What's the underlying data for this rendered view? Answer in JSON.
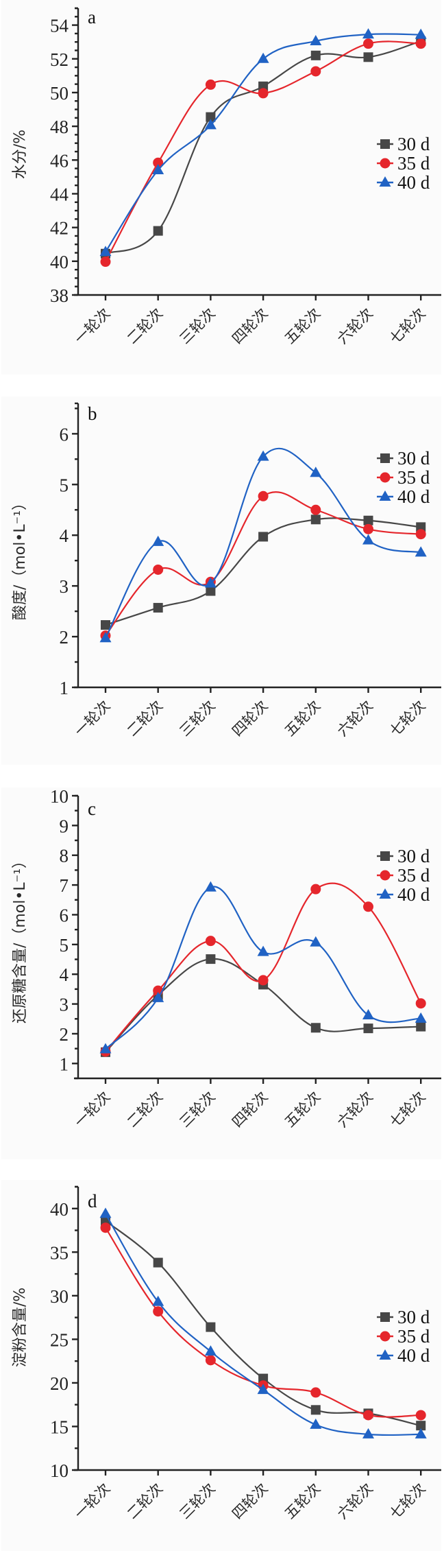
{
  "chart_data": [
    {
      "type": "line",
      "panel_label": "a",
      "ylabel": "水分/%",
      "xlabel": "",
      "categories": [
        "一轮次",
        "二轮次",
        "三轮次",
        "四轮次",
        "五轮次",
        "六轮次",
        "七轮次"
      ],
      "ylim": [
        38,
        55
      ],
      "yticks": [
        38,
        40,
        42,
        44,
        46,
        48,
        50,
        52,
        54
      ],
      "minor_step": 0.5,
      "legend": "right",
      "series": [
        {
          "name": "30 d",
          "marker": "square",
          "color": "#474747",
          "values": [
            40.45,
            41.8,
            48.55,
            50.37,
            52.2,
            52.1,
            53.05
          ]
        },
        {
          "name": "35 d",
          "marker": "circle",
          "color": "#e5262c",
          "values": [
            39.97,
            45.84,
            50.47,
            49.96,
            51.26,
            52.9,
            52.9
          ]
        },
        {
          "name": "40 d",
          "marker": "triangle",
          "color": "#2062c4",
          "values": [
            40.55,
            45.4,
            48.07,
            52.0,
            53.05,
            53.45,
            53.43
          ]
        }
      ]
    },
    {
      "type": "line",
      "panel_label": "b",
      "ylabel": "酸度/（mol•L⁻¹）",
      "xlabel": "",
      "categories": [
        "一轮次",
        "二轮次",
        "三轮次",
        "四轮次",
        "五轮次",
        "六轮次",
        "七轮次"
      ],
      "ylim": [
        1,
        6.6
      ],
      "yticks": [
        1,
        2,
        3,
        4,
        5,
        6
      ],
      "minor_step": 0.5,
      "legend": "top-right",
      "series": [
        {
          "name": "30 d",
          "marker": "square",
          "color": "#474747",
          "values": [
            2.23,
            2.57,
            2.9,
            3.97,
            4.31,
            4.29,
            4.16
          ]
        },
        {
          "name": "35 d",
          "marker": "circle",
          "color": "#e5262c",
          "values": [
            2.02,
            3.32,
            3.08,
            4.77,
            4.5,
            4.12,
            4.02
          ]
        },
        {
          "name": "40 d",
          "marker": "triangle",
          "color": "#2062c4",
          "values": [
            1.97,
            3.87,
            3.05,
            5.55,
            5.23,
            3.9,
            3.66
          ]
        }
      ]
    },
    {
      "type": "line",
      "panel_label": "c",
      "ylabel": "还原糖含量/（mol•L⁻¹）",
      "xlabel": "",
      "categories": [
        "一轮次",
        "二轮次",
        "三轮次",
        "四轮次",
        "五轮次",
        "六轮次",
        "七轮次"
      ],
      "ylim": [
        0.5,
        10
      ],
      "yticks": [
        1,
        2,
        3,
        4,
        5,
        6,
        7,
        8,
        9,
        10
      ],
      "minor_step": 0.5,
      "legend": "top-right",
      "series": [
        {
          "name": "30 d",
          "marker": "square",
          "color": "#474747",
          "values": [
            1.38,
            3.3,
            4.51,
            3.65,
            2.2,
            2.18,
            2.24
          ]
        },
        {
          "name": "35 d",
          "marker": "circle",
          "color": "#e5262c",
          "values": [
            1.4,
            3.45,
            5.12,
            3.8,
            6.86,
            6.27,
            3.02
          ]
        },
        {
          "name": "40 d",
          "marker": "triangle",
          "color": "#2062c4",
          "values": [
            1.48,
            3.2,
            6.92,
            4.75,
            5.07,
            2.62,
            2.51
          ]
        }
      ]
    },
    {
      "type": "line",
      "panel_label": "d",
      "ylabel": "淀粉含量/%",
      "xlabel": "",
      "categories": [
        "一轮次",
        "二轮次",
        "三轮次",
        "四轮次",
        "五轮次",
        "六轮次",
        "七轮次"
      ],
      "ylim": [
        10,
        42.5
      ],
      "yticks": [
        10,
        15,
        20,
        25,
        30,
        35,
        40
      ],
      "minor_step": 2.5,
      "legend": "right",
      "series": [
        {
          "name": "30 d",
          "marker": "square",
          "color": "#474747",
          "values": [
            38.6,
            33.8,
            26.4,
            20.5,
            16.9,
            16.5,
            15.1
          ]
        },
        {
          "name": "35 d",
          "marker": "circle",
          "color": "#e5262c",
          "values": [
            37.8,
            28.2,
            22.6,
            19.7,
            18.9,
            16.3,
            16.3
          ]
        },
        {
          "name": "40 d",
          "marker": "triangle",
          "color": "#2062c4",
          "values": [
            39.4,
            29.3,
            23.6,
            19.2,
            15.2,
            14.1,
            14.1
          ]
        }
      ]
    }
  ]
}
